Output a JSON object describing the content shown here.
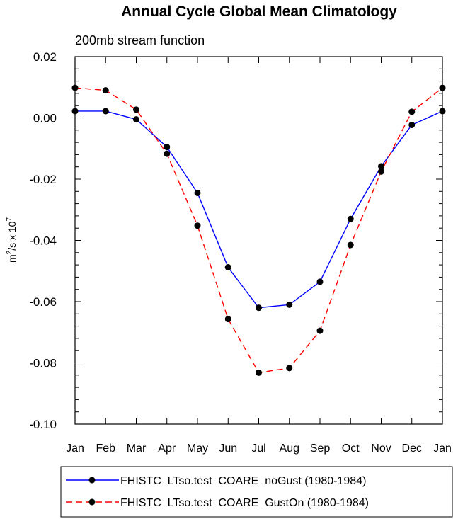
{
  "chart_data": {
    "type": "line",
    "title": "Annual Cycle Global Mean Climatology",
    "subtitle": "200mb stream function",
    "ylabel_base": "m",
    "ylabel_exp1": "2",
    "ylabel_mid": "/s x 10",
    "ylabel_exp2": "7",
    "xlabel": "",
    "categories": [
      "Jan",
      "Feb",
      "Mar",
      "Apr",
      "May",
      "Jun",
      "Jul",
      "Aug",
      "Sep",
      "Oct",
      "Nov",
      "Dec",
      "Jan"
    ],
    "ylim": [
      -0.1,
      0.02
    ],
    "yticks": [
      0.02,
      0.0,
      -0.02,
      -0.04,
      -0.06,
      -0.08,
      -0.1
    ],
    "ytick_labels": [
      "0.02",
      "0.00",
      "-0.02",
      "-0.04",
      "-0.06",
      "-0.08",
      "-0.10"
    ],
    "yminor_step": 0.004,
    "series": [
      {
        "name": "FHISTC_LTso.test_COARE_noGust (1980-1984)",
        "color": "#0000ff",
        "dash": "solid",
        "values": [
          0.0022,
          0.0022,
          -0.0005,
          -0.0095,
          -0.0245,
          -0.0488,
          -0.062,
          -0.061,
          -0.0535,
          -0.033,
          -0.0158,
          -0.0023,
          0.0022
        ]
      },
      {
        "name": "FHISTC_LTso.test_COARE_GustOn (1980-1984)",
        "color": "#ff0000",
        "dash": "dashed",
        "values": [
          0.0098,
          0.009,
          0.0027,
          -0.0117,
          -0.0352,
          -0.0657,
          -0.0832,
          -0.0817,
          -0.0695,
          -0.0415,
          -0.0175,
          0.002,
          0.0098
        ]
      }
    ],
    "marker_color": "#000000",
    "legend_position": "bottom"
  }
}
